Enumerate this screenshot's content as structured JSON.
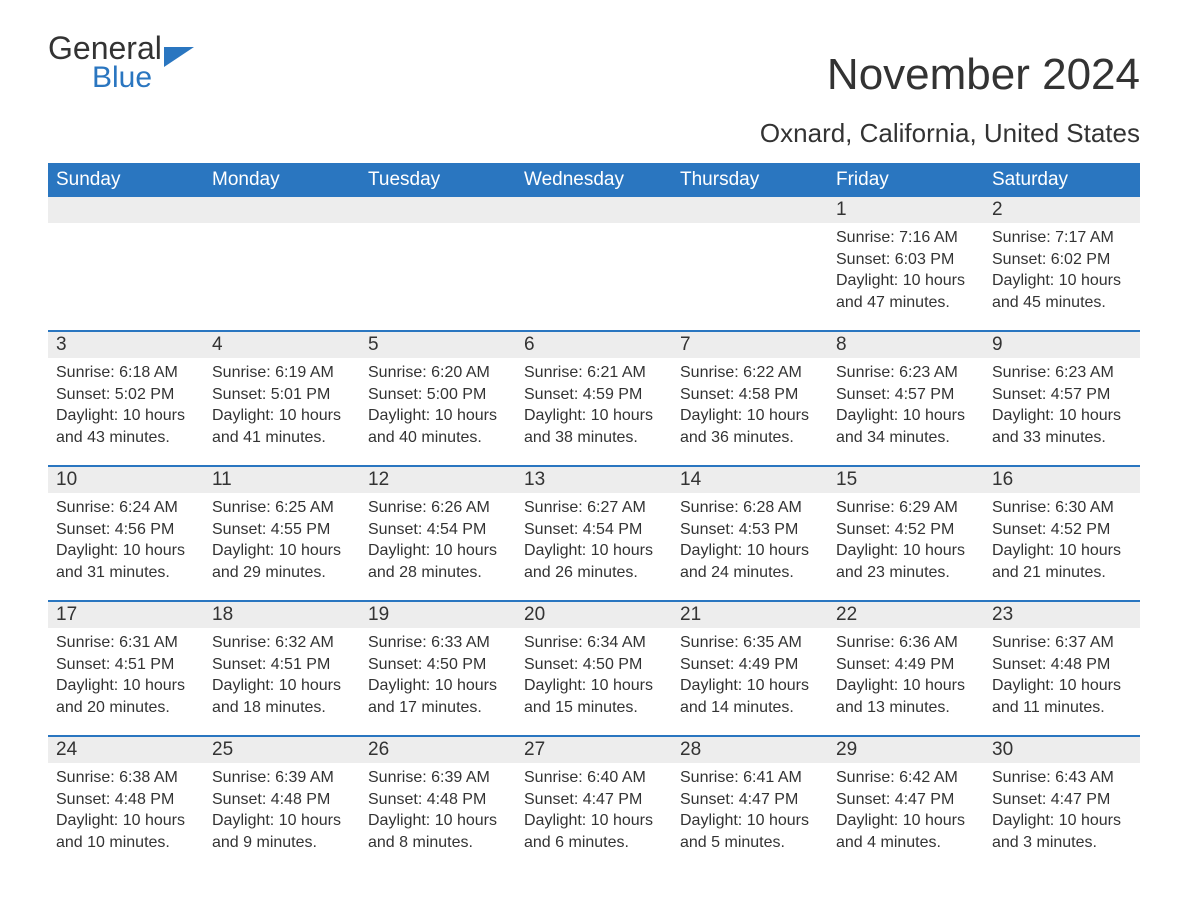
{
  "brand": {
    "part1": "General",
    "part2": "Blue",
    "brand_color": "#2a76c0"
  },
  "title": "November 2024",
  "location": "Oxnard, California, United States",
  "colors": {
    "header_bg": "#2a76c0",
    "header_text": "#ffffff",
    "daynum_bg": "#ededed",
    "row_border": "#2a76c0",
    "body_text": "#333333",
    "page_bg": "#ffffff"
  },
  "fonts": {
    "title_size_pt": 33,
    "location_size_pt": 20,
    "header_size_pt": 14,
    "daynum_size_pt": 14,
    "cell_size_pt": 12
  },
  "day_headers": [
    "Sunday",
    "Monday",
    "Tuesday",
    "Wednesday",
    "Thursday",
    "Friday",
    "Saturday"
  ],
  "labels": {
    "sunrise": "Sunrise:",
    "sunset": "Sunset:",
    "daylight": "Daylight:"
  },
  "weeks": [
    [
      null,
      null,
      null,
      null,
      null,
      {
        "day": "1",
        "sunrise": "7:16 AM",
        "sunset": "6:03 PM",
        "daylight": "10 hours and 47 minutes."
      },
      {
        "day": "2",
        "sunrise": "7:17 AM",
        "sunset": "6:02 PM",
        "daylight": "10 hours and 45 minutes."
      }
    ],
    [
      {
        "day": "3",
        "sunrise": "6:18 AM",
        "sunset": "5:02 PM",
        "daylight": "10 hours and 43 minutes."
      },
      {
        "day": "4",
        "sunrise": "6:19 AM",
        "sunset": "5:01 PM",
        "daylight": "10 hours and 41 minutes."
      },
      {
        "day": "5",
        "sunrise": "6:20 AM",
        "sunset": "5:00 PM",
        "daylight": "10 hours and 40 minutes."
      },
      {
        "day": "6",
        "sunrise": "6:21 AM",
        "sunset": "4:59 PM",
        "daylight": "10 hours and 38 minutes."
      },
      {
        "day": "7",
        "sunrise": "6:22 AM",
        "sunset": "4:58 PM",
        "daylight": "10 hours and 36 minutes."
      },
      {
        "day": "8",
        "sunrise": "6:23 AM",
        "sunset": "4:57 PM",
        "daylight": "10 hours and 34 minutes."
      },
      {
        "day": "9",
        "sunrise": "6:23 AM",
        "sunset": "4:57 PM",
        "daylight": "10 hours and 33 minutes."
      }
    ],
    [
      {
        "day": "10",
        "sunrise": "6:24 AM",
        "sunset": "4:56 PM",
        "daylight": "10 hours and 31 minutes."
      },
      {
        "day": "11",
        "sunrise": "6:25 AM",
        "sunset": "4:55 PM",
        "daylight": "10 hours and 29 minutes."
      },
      {
        "day": "12",
        "sunrise": "6:26 AM",
        "sunset": "4:54 PM",
        "daylight": "10 hours and 28 minutes."
      },
      {
        "day": "13",
        "sunrise": "6:27 AM",
        "sunset": "4:54 PM",
        "daylight": "10 hours and 26 minutes."
      },
      {
        "day": "14",
        "sunrise": "6:28 AM",
        "sunset": "4:53 PM",
        "daylight": "10 hours and 24 minutes."
      },
      {
        "day": "15",
        "sunrise": "6:29 AM",
        "sunset": "4:52 PM",
        "daylight": "10 hours and 23 minutes."
      },
      {
        "day": "16",
        "sunrise": "6:30 AM",
        "sunset": "4:52 PM",
        "daylight": "10 hours and 21 minutes."
      }
    ],
    [
      {
        "day": "17",
        "sunrise": "6:31 AM",
        "sunset": "4:51 PM",
        "daylight": "10 hours and 20 minutes."
      },
      {
        "day": "18",
        "sunrise": "6:32 AM",
        "sunset": "4:51 PM",
        "daylight": "10 hours and 18 minutes."
      },
      {
        "day": "19",
        "sunrise": "6:33 AM",
        "sunset": "4:50 PM",
        "daylight": "10 hours and 17 minutes."
      },
      {
        "day": "20",
        "sunrise": "6:34 AM",
        "sunset": "4:50 PM",
        "daylight": "10 hours and 15 minutes."
      },
      {
        "day": "21",
        "sunrise": "6:35 AM",
        "sunset": "4:49 PM",
        "daylight": "10 hours and 14 minutes."
      },
      {
        "day": "22",
        "sunrise": "6:36 AM",
        "sunset": "4:49 PM",
        "daylight": "10 hours and 13 minutes."
      },
      {
        "day": "23",
        "sunrise": "6:37 AM",
        "sunset": "4:48 PM",
        "daylight": "10 hours and 11 minutes."
      }
    ],
    [
      {
        "day": "24",
        "sunrise": "6:38 AM",
        "sunset": "4:48 PM",
        "daylight": "10 hours and 10 minutes."
      },
      {
        "day": "25",
        "sunrise": "6:39 AM",
        "sunset": "4:48 PM",
        "daylight": "10 hours and 9 minutes."
      },
      {
        "day": "26",
        "sunrise": "6:39 AM",
        "sunset": "4:48 PM",
        "daylight": "10 hours and 8 minutes."
      },
      {
        "day": "27",
        "sunrise": "6:40 AM",
        "sunset": "4:47 PM",
        "daylight": "10 hours and 6 minutes."
      },
      {
        "day": "28",
        "sunrise": "6:41 AM",
        "sunset": "4:47 PM",
        "daylight": "10 hours and 5 minutes."
      },
      {
        "day": "29",
        "sunrise": "6:42 AM",
        "sunset": "4:47 PM",
        "daylight": "10 hours and 4 minutes."
      },
      {
        "day": "30",
        "sunrise": "6:43 AM",
        "sunset": "4:47 PM",
        "daylight": "10 hours and 3 minutes."
      }
    ]
  ]
}
